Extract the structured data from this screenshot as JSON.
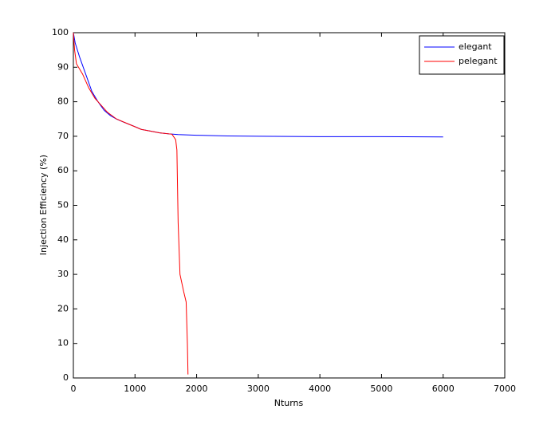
{
  "chart_data": {
    "type": "line",
    "xlabel": "Nturns",
    "ylabel": "Injection Efficiency (%)",
    "xlim": [
      0,
      7000
    ],
    "xticks": [
      0,
      1000,
      2000,
      3000,
      4000,
      5000,
      6000,
      7000
    ],
    "ylim": [
      0,
      100
    ],
    "yticks": [
      0,
      10,
      20,
      30,
      40,
      50,
      60,
      70,
      80,
      90,
      100
    ],
    "legend": "upper right",
    "series": [
      {
        "name": "elegant",
        "color": "#0000ff",
        "x": [
          0,
          30,
          100,
          200,
          300,
          400,
          500,
          600,
          700,
          800,
          900,
          1000,
          1100,
          1250,
          1400,
          1550,
          1700,
          2000,
          2500,
          3000,
          4000,
          5000,
          6000
        ],
        "values": [
          100,
          97,
          93,
          88,
          83,
          80,
          77.5,
          76,
          75,
          74.2,
          73.5,
          72.8,
          72,
          71.5,
          71,
          70.7,
          70.5,
          70.3,
          70.1,
          70,
          69.9,
          69.9,
          69.8
        ]
      },
      {
        "name": "pelegant",
        "color": "#ff0000",
        "x": [
          0,
          20,
          50,
          150,
          250,
          350,
          450,
          550,
          700,
          900,
          1100,
          1400,
          1600,
          1660,
          1680,
          1700,
          1730,
          1790,
          1830,
          1850,
          1860
        ],
        "values": [
          100,
          95,
          91,
          88,
          84,
          81,
          79,
          77,
          75,
          73.5,
          72,
          71,
          70.6,
          69,
          66,
          45,
          30,
          25,
          22,
          10,
          1
        ]
      }
    ]
  }
}
